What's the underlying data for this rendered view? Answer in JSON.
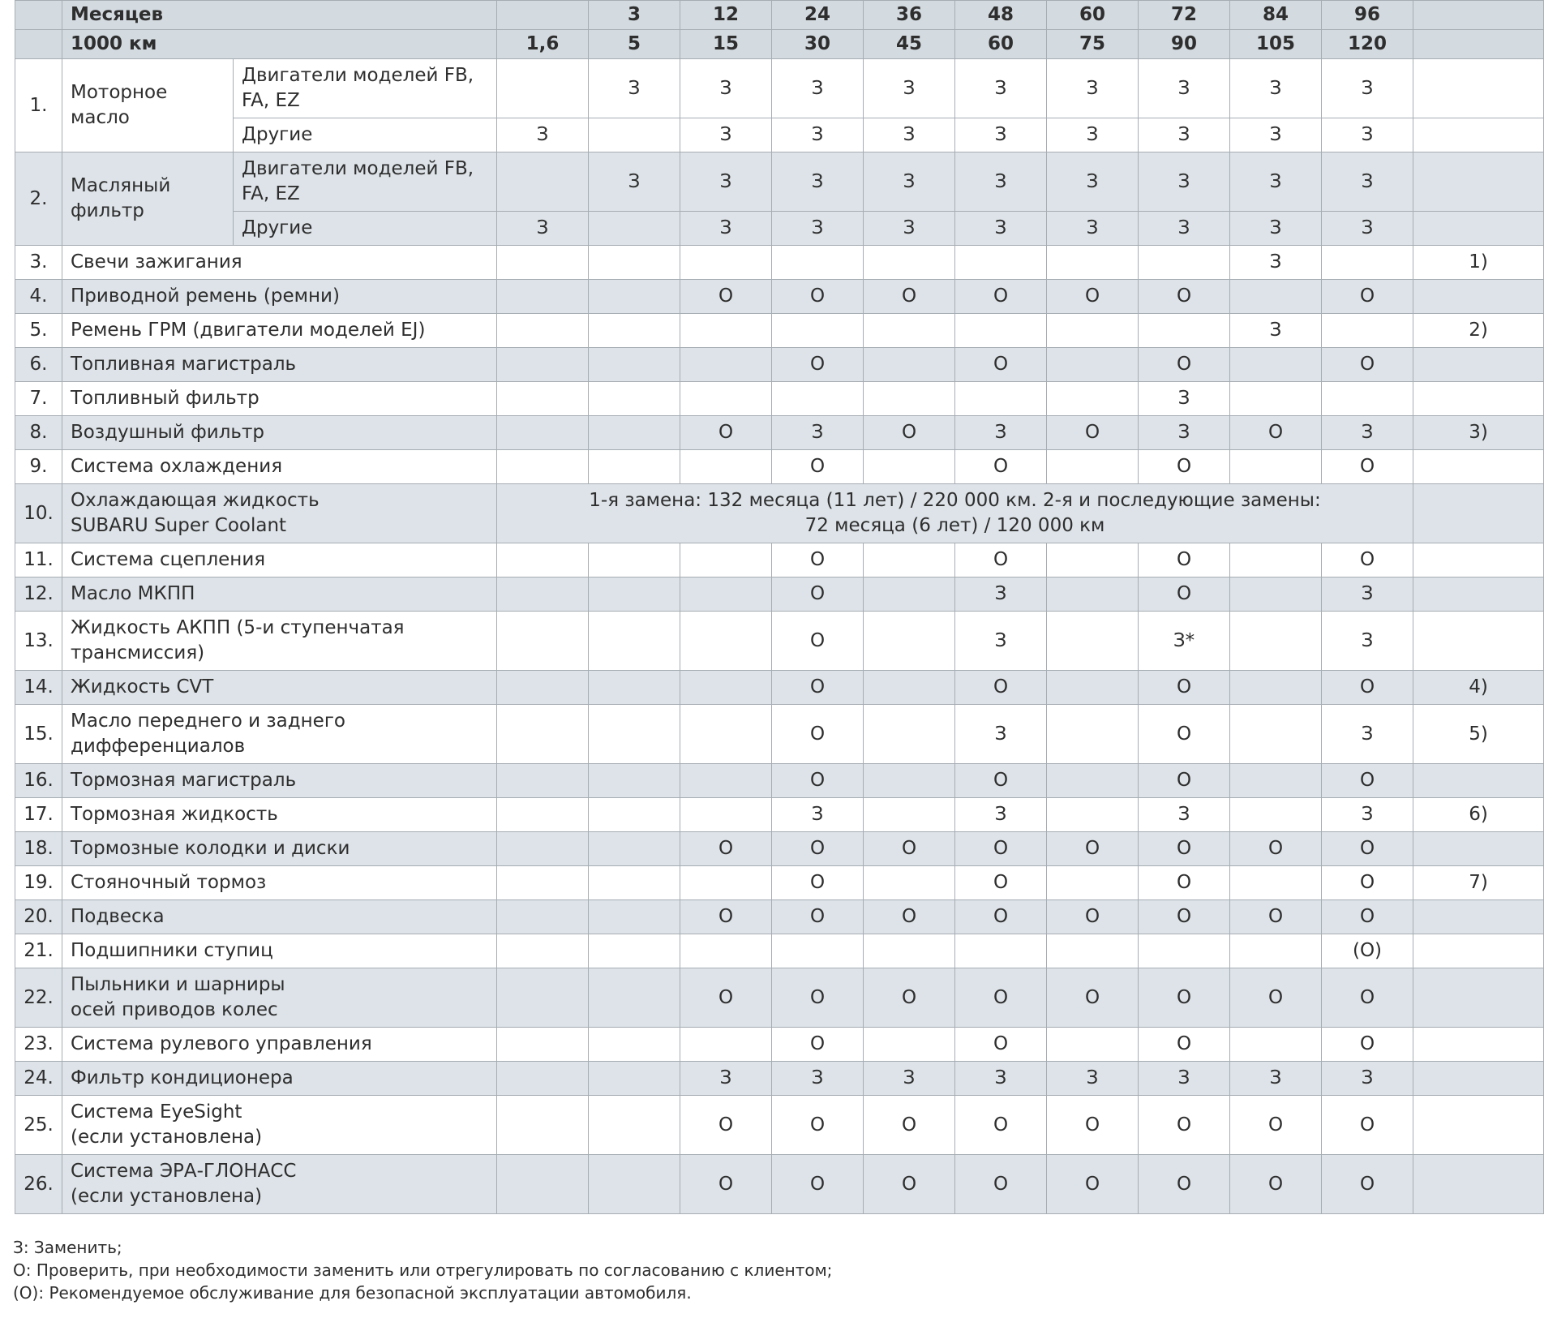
{
  "table": {
    "header": {
      "months_label": "Месяцев",
      "months": [
        "3",
        "12",
        "24",
        "36",
        "48",
        "60",
        "72",
        "84",
        "96"
      ],
      "km_label": "1000 км",
      "km": [
        "1,6",
        "5",
        "15",
        "30",
        "45",
        "60",
        "75",
        "90",
        "105",
        "120"
      ]
    },
    "rows": [
      {
        "number": "1.",
        "name": [
          "Моторное",
          "масло"
        ],
        "subrows": [
          {
            "name": [
              "Двигатели моделей FB,",
              "FA, EZ"
            ],
            "cells": [
              null,
              "З",
              "З",
              "З",
              "З",
              "З",
              "З",
              "З",
              "З",
              "З"
            ]
          },
          {
            "name": [
              "Другие"
            ],
            "cells": [
              "З",
              null,
              "З",
              "З",
              "З",
              "З",
              "З",
              "З",
              "З",
              "З"
            ]
          }
        ]
      },
      {
        "number": "2.",
        "name": [
          "Масляный",
          "фильтр"
        ],
        "subrows": [
          {
            "name": [
              "Двигатели моделей FB,",
              "FA, EZ"
            ],
            "cells": [
              null,
              "З",
              "З",
              "З",
              "З",
              "З",
              "З",
              "З",
              "З",
              "З"
            ]
          },
          {
            "name": [
              "Другие"
            ],
            "cells": [
              "З",
              null,
              "З",
              "З",
              "З",
              "З",
              "З",
              "З",
              "З",
              "З"
            ]
          }
        ]
      },
      {
        "number": "3.",
        "name": [
          "Свечи зажигания"
        ],
        "cells": [
          null,
          null,
          null,
          null,
          null,
          null,
          null,
          null,
          "З",
          null
        ],
        "note": "1)"
      },
      {
        "number": "4.",
        "name": [
          "Приводной ремень (ремни)"
        ],
        "cells": [
          null,
          null,
          "О",
          "О",
          "О",
          "О",
          "О",
          "О",
          null,
          "О"
        ]
      },
      {
        "number": "5.",
        "name": [
          "Ремень ГРМ (двигатели моделей EJ)"
        ],
        "cells": [
          null,
          null,
          null,
          null,
          null,
          null,
          null,
          null,
          "З",
          null
        ],
        "note": "2)"
      },
      {
        "number": "6.",
        "name": [
          "Топливная магистраль"
        ],
        "cells": [
          null,
          null,
          null,
          "О",
          null,
          "О",
          null,
          "О",
          null,
          "О"
        ]
      },
      {
        "number": "7.",
        "name": [
          "Топливный фильтр"
        ],
        "cells": [
          null,
          null,
          null,
          null,
          null,
          null,
          null,
          "З",
          null,
          null
        ]
      },
      {
        "number": "8.",
        "name": [
          "Воздушный фильтр"
        ],
        "cells": [
          null,
          null,
          "О",
          "З",
          "О",
          "З",
          "О",
          "З",
          "О",
          "З"
        ],
        "note": "3)"
      },
      {
        "number": "9.",
        "name": [
          "Система охлаждения"
        ],
        "cells": [
          null,
          null,
          null,
          "О",
          null,
          "О",
          null,
          "О",
          null,
          "О"
        ]
      },
      {
        "number": "10.",
        "name": [
          "Охлаждающая жидкость",
          "SUBARU Super Coolant"
        ],
        "span": [
          "1-я замена: 132 месяца (11 лет) / 220 000 км. 2-я и последующие замены:",
          "72 месяца (6 лет) / 120 000 км"
        ]
      },
      {
        "number": "11.",
        "name": [
          "Система сцепления"
        ],
        "cells": [
          null,
          null,
          null,
          "О",
          null,
          "О",
          null,
          "О",
          null,
          "О"
        ]
      },
      {
        "number": "12.",
        "name": [
          "Масло МКПП"
        ],
        "cells": [
          null,
          null,
          null,
          "О",
          null,
          "З",
          null,
          "О",
          null,
          "З"
        ]
      },
      {
        "number": "13.",
        "name": [
          "Жидкость АКПП (5-и ступенчатая",
          "трансмиссия)"
        ],
        "cells": [
          null,
          null,
          null,
          "О",
          null,
          "З",
          null,
          "З*",
          null,
          "З"
        ]
      },
      {
        "number": "14.",
        "name": [
          "Жидкость CVT"
        ],
        "cells": [
          null,
          null,
          null,
          "О",
          null,
          "О",
          null,
          "О",
          null,
          "О"
        ],
        "note": "4)"
      },
      {
        "number": "15.",
        "name": [
          "Масло переднего и заднего",
          "дифференциалов"
        ],
        "cells": [
          null,
          null,
          null,
          "О",
          null,
          "З",
          null,
          "О",
          null,
          "З"
        ],
        "note": "5)"
      },
      {
        "number": "16.",
        "name": [
          "Тормозная магистраль"
        ],
        "cells": [
          null,
          null,
          null,
          "О",
          null,
          "О",
          null,
          "О",
          null,
          "О"
        ]
      },
      {
        "number": "17.",
        "name": [
          "Тормозная жидкость"
        ],
        "cells": [
          null,
          null,
          null,
          "З",
          null,
          "З",
          null,
          "З",
          null,
          "З"
        ],
        "note": "6)"
      },
      {
        "number": "18.",
        "name": [
          "Тормозные колодки и диски"
        ],
        "cells": [
          null,
          null,
          "О",
          "О",
          "О",
          "О",
          "О",
          "О",
          "О",
          "О"
        ]
      },
      {
        "number": "19.",
        "name": [
          "Стояночный тормоз"
        ],
        "cells": [
          null,
          null,
          null,
          "О",
          null,
          "О",
          null,
          "О",
          null,
          "О"
        ],
        "note": "7)"
      },
      {
        "number": "20.",
        "name": [
          "Подвеска"
        ],
        "cells": [
          null,
          null,
          "О",
          "О",
          "О",
          "О",
          "О",
          "О",
          "О",
          "О"
        ]
      },
      {
        "number": "21.",
        "name": [
          "Подшипники ступиц"
        ],
        "cells": [
          null,
          null,
          null,
          null,
          null,
          null,
          null,
          null,
          null,
          "(О)"
        ]
      },
      {
        "number": "22.",
        "name": [
          "Пыльники и шарниры",
          "осей приводов колес"
        ],
        "cells": [
          null,
          null,
          "О",
          "О",
          "О",
          "О",
          "О",
          "О",
          "О",
          "О"
        ]
      },
      {
        "number": "23.",
        "name": [
          "Система рулевого управления"
        ],
        "cells": [
          null,
          null,
          null,
          "О",
          null,
          "О",
          null,
          "О",
          null,
          "О"
        ]
      },
      {
        "number": "24.",
        "name": [
          "Фильтр кондиционера"
        ],
        "cells": [
          null,
          null,
          "З",
          "З",
          "З",
          "З",
          "З",
          "З",
          "З",
          "З"
        ]
      },
      {
        "number": "25.",
        "name": [
          "Система EyeSight",
          "(если установлена)"
        ],
        "cells": [
          null,
          null,
          "О",
          "О",
          "О",
          "О",
          "О",
          "О",
          "О",
          "О"
        ]
      },
      {
        "number": "26.",
        "name": [
          "Система ЭРА-ГЛОНАСС",
          "(если установлена)"
        ],
        "cells": [
          null,
          null,
          "О",
          "О",
          "О",
          "О",
          "О",
          "О",
          "О",
          "О"
        ]
      }
    ]
  },
  "legend": [
    "З: Заменить;",
    "О: Проверить, при необходимости заменить или отрегулировать по согласованию с клиентом;",
    "(О): Рекомендуемое обслуживание для безопасной эксплуатации автомобиля."
  ]
}
